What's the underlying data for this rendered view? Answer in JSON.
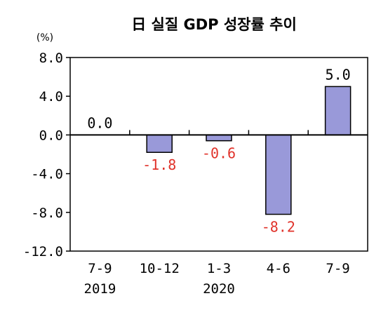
{
  "chart_data": {
    "type": "bar",
    "title": "日 실질 GDP 성장률 추이",
    "unit": "(%)",
    "categories": [
      "7-9",
      "10-12",
      "1-3",
      "4-6",
      "7-9"
    ],
    "years": [
      "2019",
      "",
      "2020",
      "",
      ""
    ],
    "values": [
      0.0,
      -1.8,
      -0.6,
      -8.2,
      5.0
    ],
    "data_labels": [
      "0.0",
      "-1.8",
      "-0.6",
      "-8.2",
      "5.0"
    ],
    "yticks": [
      8.0,
      4.0,
      0.0,
      -4.0,
      -8.0,
      -12.0
    ],
    "ytick_labels": [
      "8.0",
      "4.0",
      "0.0",
      "-4.0",
      "-8.0",
      "-12.0"
    ],
    "ylim": [
      -12,
      8
    ],
    "grid": false,
    "colors": {
      "bar": "#9999d9",
      "bar_edge": "#000000",
      "positive_label": "#000000",
      "negative_label": "#e0322a"
    }
  }
}
